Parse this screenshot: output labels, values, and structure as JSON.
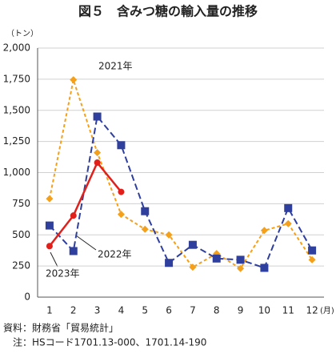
{
  "chart_data": {
    "type": "line",
    "title": "図５　含みつ糖の輸入量の推移",
    "y_unit": "（トン）",
    "x_unit": "(月)",
    "categories": [
      "1",
      "2",
      "3",
      "4",
      "5",
      "6",
      "7",
      "8",
      "9",
      "10",
      "11",
      "12"
    ],
    "series": [
      {
        "name": "2021年",
        "color": "#f5a01a",
        "line_style": "dashed",
        "marker": "diamond",
        "values": [
          790,
          1745,
          1160,
          665,
          545,
          500,
          240,
          350,
          230,
          535,
          590,
          300
        ]
      },
      {
        "name": "2022年",
        "color": "#2f3f9e",
        "line_style": "dashed",
        "marker": "square",
        "values": [
          575,
          370,
          1450,
          1220,
          690,
          275,
          420,
          310,
          300,
          235,
          715,
          375
        ]
      },
      {
        "name": "2023年",
        "color": "#e0201b",
        "line_style": "solid",
        "marker": "circle",
        "values": [
          410,
          655,
          1080,
          845,
          null,
          null,
          null,
          null,
          null,
          null,
          null,
          null
        ]
      }
    ],
    "ylim": [
      0,
      2000
    ],
    "yticks": [
      0,
      250,
      500,
      750,
      {
        "value": 1000,
        "label": "1,000"
      },
      {
        "value": 1250,
        "label": "1,250"
      },
      {
        "value": 1500,
        "label": "1,500"
      },
      {
        "value": 1750,
        "label": "1,750"
      },
      {
        "value": 2000,
        "label": "2,000"
      }
    ],
    "grid": true,
    "notes": [
      "資料：財務省「貿易統計」",
      "注：HSコード1701.13-000、1701.14-190"
    ]
  }
}
